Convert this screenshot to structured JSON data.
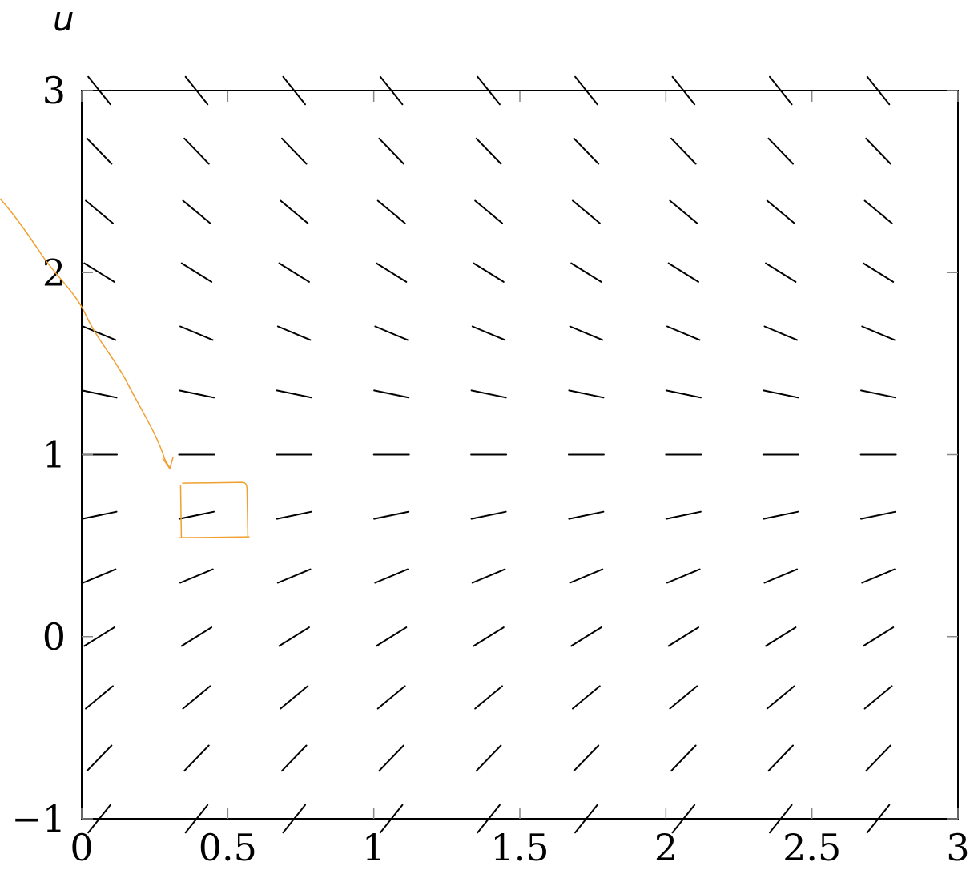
{
  "chart_data": {
    "type": "slope_field",
    "title": "",
    "xlabel": "",
    "ylabel": "u",
    "xlim": [
      0,
      3
    ],
    "ylim": [
      -1,
      3
    ],
    "x_ticks": [
      {
        "value": 0,
        "label": "0"
      },
      {
        "value": 0.5,
        "label": "0.5"
      },
      {
        "value": 1,
        "label": "1"
      },
      {
        "value": 1.5,
        "label": "1.5"
      },
      {
        "value": 2,
        "label": "2"
      },
      {
        "value": 2.5,
        "label": "2.5"
      },
      {
        "value": 3,
        "label": "3"
      }
    ],
    "y_ticks": [
      {
        "value": -1,
        "label": "−1"
      },
      {
        "value": 0,
        "label": "0"
      },
      {
        "value": 1,
        "label": "1"
      },
      {
        "value": 2,
        "label": "2"
      },
      {
        "value": 3,
        "label": "3"
      }
    ],
    "grid": false,
    "field": {
      "equation_slope_of_segment_direction": "1 - u",
      "x_samples": [
        0,
        0.333,
        0.667,
        1.0,
        1.333,
        1.667,
        2.0,
        2.333,
        2.667
      ],
      "u_samples": [
        3.0,
        2.667,
        2.333,
        2.0,
        1.667,
        1.333,
        1.0,
        0.667,
        0.333,
        0.0,
        -0.333,
        -0.667,
        -1.0
      ]
    },
    "annotation": {
      "kind": "handwritten-arrow-and-box",
      "color": "#f0a030",
      "highlighted_point": {
        "x": 0.333,
        "u": 0.667
      }
    }
  }
}
